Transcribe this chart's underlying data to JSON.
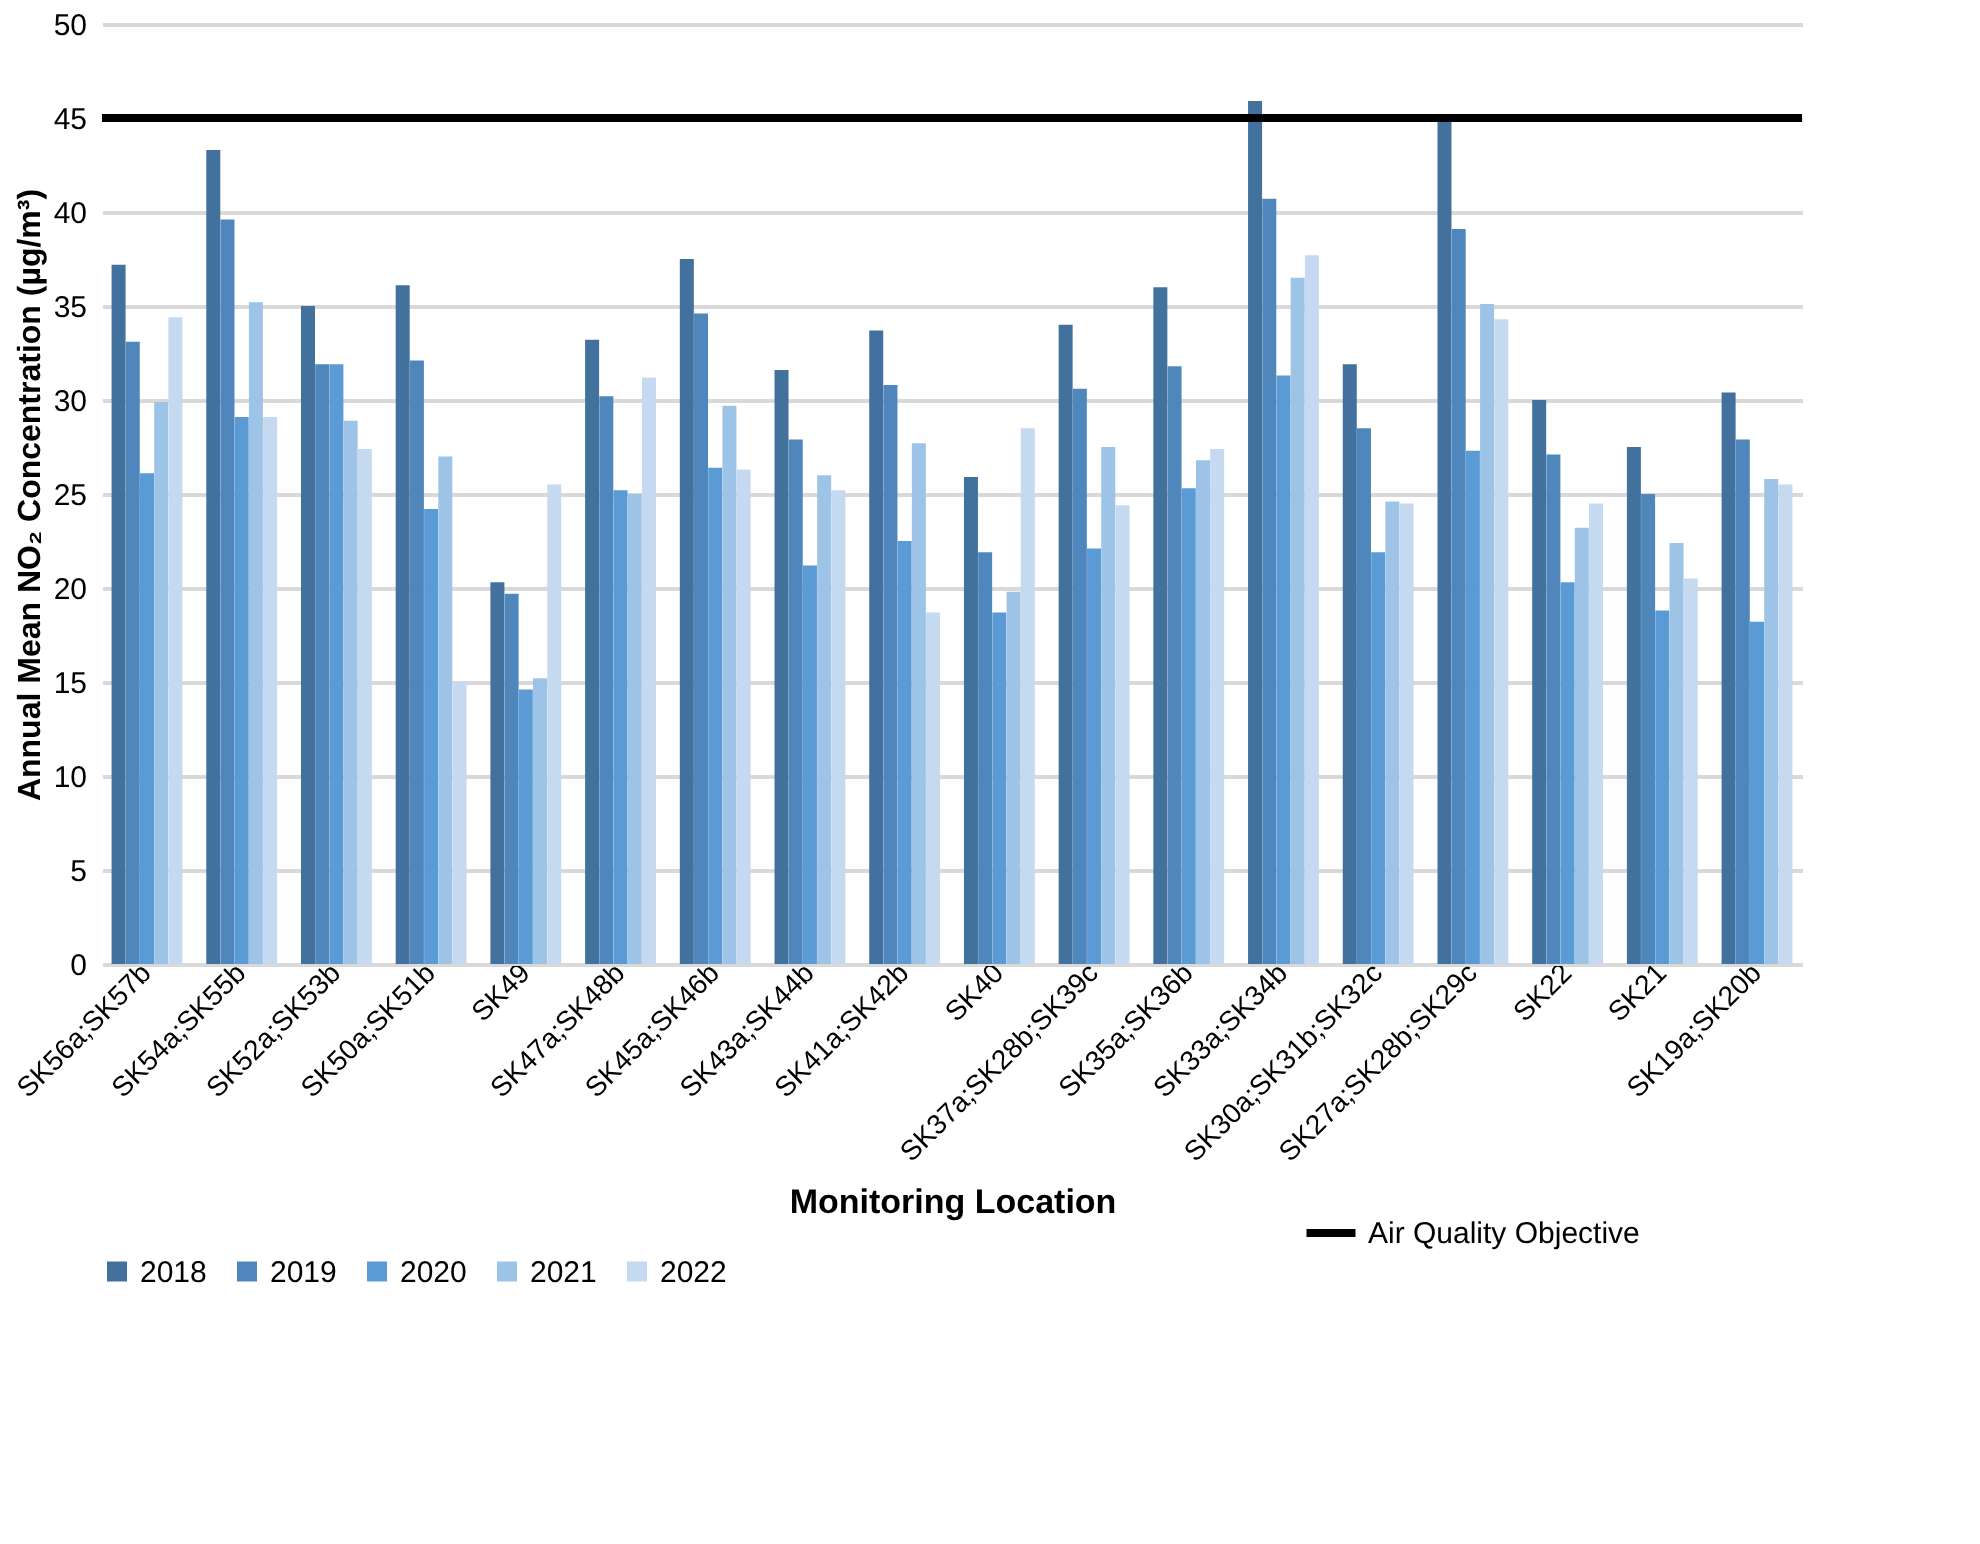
{
  "chart_data": {
    "type": "bar",
    "xlabel": "Monitoring Location",
    "ylabel": "Annual Mean NO₂ Concentration (µg/m³)",
    "categories": [
      "SK56a;SK57b",
      "SK54a;SK55b",
      "SK52a;SK53b",
      "SK50a;SK51b",
      "SK49",
      "SK47a;SK48b",
      "SK45a;SK46b",
      "SK43a;SK44b",
      "SK41a;SK42b",
      "SK40",
      "SK37a;SK28b;SK39c",
      "SK35a;SK36b",
      "SK33a;SK34b",
      "SK30a;SK31b;SK32c",
      "SK27a;SK28b;SK29c",
      "SK22",
      "SK21",
      "SK19a;SK20b"
    ],
    "series": [
      {
        "name": "2018",
        "color": "#41719c",
        "values": [
          37.2,
          43.3,
          35.0,
          36.1,
          20.3,
          33.2,
          37.5,
          31.6,
          33.7,
          25.9,
          34.0,
          36.0,
          45.9,
          31.9,
          45.0,
          30.0,
          27.5,
          30.4
        ]
      },
      {
        "name": "2019",
        "color": "#4f87bd",
        "values": [
          33.1,
          39.6,
          31.9,
          32.1,
          19.7,
          30.2,
          34.6,
          27.9,
          30.8,
          21.9,
          30.6,
          31.8,
          40.7,
          28.5,
          39.1,
          27.1,
          25.0,
          27.9
        ]
      },
      {
        "name": "2020",
        "color": "#5b9bd5",
        "values": [
          26.1,
          29.1,
          31.9,
          24.2,
          14.6,
          25.2,
          26.4,
          21.2,
          22.5,
          18.7,
          22.1,
          25.3,
          31.3,
          21.9,
          27.3,
          20.3,
          18.8,
          18.2
        ]
      },
      {
        "name": "2021",
        "color": "#9dc3e6",
        "values": [
          29.9,
          35.2,
          28.9,
          27.0,
          15.2,
          25.0,
          29.7,
          26.0,
          27.7,
          19.8,
          27.5,
          26.8,
          36.5,
          24.6,
          35.1,
          23.2,
          22.4,
          25.8
        ]
      },
      {
        "name": "2022",
        "color": "#c5d9f0",
        "values": [
          34.4,
          29.1,
          27.4,
          15.0,
          25.5,
          31.2,
          26.3,
          25.2,
          18.7,
          28.5,
          24.4,
          27.4,
          37.7,
          24.5,
          34.3,
          24.5,
          20.5,
          25.5
        ]
      }
    ],
    "ylim": [
      0,
      50
    ],
    "yticks": [
      0,
      5,
      10,
      15,
      20,
      25,
      30,
      35,
      40,
      45,
      50
    ],
    "grid": "y",
    "legend": "bottom",
    "ref_lines": [
      {
        "axis": "y",
        "value": 45,
        "label": "Air Quality Objective",
        "color": "#000000",
        "line_style": "solid"
      }
    ]
  }
}
